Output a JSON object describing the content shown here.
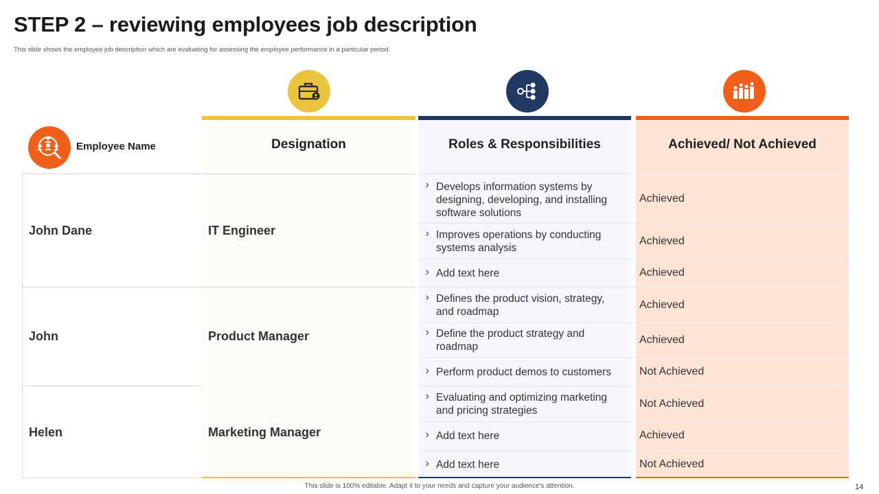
{
  "title": "STEP 2 – reviewing employees job description",
  "subtitle": "This slide shows the employee job description which are evaluating for assessing the employee performance in a particular period.",
  "colors": {
    "yellow": "#eac43f",
    "navy": "#223a63",
    "orange": "#f0601a",
    "peach": "#fde4d4"
  },
  "header": {
    "employee_label": "Employee Name",
    "designation": "Designation",
    "roles": "Roles & Responsibilities",
    "achieved": "Achieved/ Not Achieved",
    "icons": [
      "briefcase-icon",
      "network-icon",
      "team-ranking-icon",
      "people-search-icon"
    ]
  },
  "employees": [
    {
      "name": "John Dane",
      "designation": "IT Engineer"
    },
    {
      "name": "John",
      "designation": "Product Manager"
    },
    {
      "name": "Helen",
      "designation": "Marketing Manager"
    }
  ],
  "rows": [
    {
      "role": "Develops information systems by designing, developing, and installing software solutions",
      "status": "Achieved"
    },
    {
      "role": "Improves operations by conducting systems analysis",
      "status": "Achieved"
    },
    {
      "role": "Add text here",
      "status": "Achieved"
    },
    {
      "role": "Defines the product vision, strategy, and roadmap",
      "status": "Achieved"
    },
    {
      "role": "Define the product strategy and roadmap",
      "status": "Achieved"
    },
    {
      "role": "Perform product demos to customers",
      "status": "Not Achieved"
    },
    {
      "role": "Evaluating and optimizing marketing and pricing strategies",
      "status": "Not Achieved"
    },
    {
      "role": "Add text here",
      "status": "Achieved"
    },
    {
      "role": "Add text here",
      "status": "Not Achieved"
    }
  ],
  "footer": "This slide is 100% editable.  Adapt it to your needs and capture your audience's attention.",
  "page_number": "14"
}
